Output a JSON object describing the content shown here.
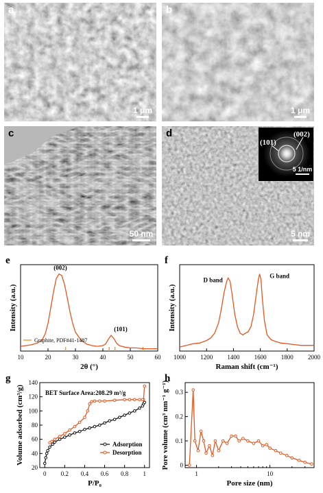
{
  "panels": {
    "a": {
      "label": "a",
      "scale": "1 μm"
    },
    "b": {
      "label": "b",
      "scale": "1 μm"
    },
    "c": {
      "label": "c",
      "scale": "50 nm"
    },
    "d": {
      "label": "d",
      "scale": "5 nm",
      "inset": {
        "ring1": "(002)",
        "ring2": "(101)",
        "scale": "5 1/nm"
      }
    },
    "e": {
      "label": "e"
    },
    "f": {
      "label": "f"
    },
    "g": {
      "label": "g"
    },
    "h": {
      "label": "h"
    }
  },
  "chart_data": [
    {
      "id": "e",
      "type": "line",
      "xlabel": "2θ (°)",
      "ylabel": "Intensity (a.u.)",
      "xlim": [
        10,
        60
      ],
      "xticks": [
        10,
        20,
        30,
        40,
        50,
        60
      ],
      "annotations": [
        {
          "text": "(002)",
          "x": 24.5
        },
        {
          "text": "(101)",
          "x": 43
        }
      ],
      "legend": "Graphite, PDF#41-1487",
      "reference_lines": [
        26.4,
        42.3,
        44.4,
        54.6
      ],
      "series": [
        {
          "color": "#e8541c",
          "x": [
            10,
            12,
            14,
            16,
            17,
            18,
            19,
            20,
            21,
            22,
            23,
            24,
            25,
            26,
            27,
            28,
            29,
            30,
            32,
            34,
            36,
            38,
            40,
            41,
            42,
            43,
            44,
            45,
            46,
            48,
            50,
            52,
            55,
            58,
            60
          ],
          "y": [
            6,
            7,
            8,
            10,
            12,
            15,
            22,
            35,
            55,
            75,
            92,
            98,
            96,
            85,
            68,
            50,
            35,
            24,
            14,
            9,
            7,
            6,
            7,
            9,
            15,
            20,
            16,
            10,
            7,
            5,
            4,
            4,
            3,
            3,
            3
          ]
        }
      ]
    },
    {
      "id": "f",
      "type": "line",
      "xlabel": "Raman shift (cm⁻¹)",
      "ylabel": "Intensity (a.u.)",
      "xlim": [
        1000,
        2000
      ],
      "xticks": [
        1000,
        1200,
        1400,
        1600,
        1800,
        2000
      ],
      "annotations": [
        {
          "text": "D band",
          "x": 1340
        },
        {
          "text": "G band",
          "x": 1600
        }
      ],
      "series": [
        {
          "color": "#e8541c",
          "x": [
            1000,
            1050,
            1100,
            1150,
            1200,
            1230,
            1260,
            1290,
            1310,
            1330,
            1350,
            1360,
            1375,
            1390,
            1410,
            1430,
            1450,
            1470,
            1490,
            1510,
            1530,
            1550,
            1570,
            1585,
            1595,
            1605,
            1615,
            1630,
            1650,
            1680,
            1710,
            1750,
            1800,
            1850,
            1900,
            1950,
            2000
          ],
          "y": [
            5,
            7,
            9,
            10,
            13,
            16,
            22,
            35,
            52,
            72,
            86,
            90,
            86,
            70,
            45,
            30,
            22,
            20,
            22,
            24,
            30,
            45,
            70,
            88,
            95,
            88,
            65,
            38,
            20,
            14,
            12,
            10,
            9,
            8,
            7,
            7,
            7
          ]
        }
      ]
    },
    {
      "id": "g",
      "type": "line",
      "xlabel": "P/P₀",
      "ylabel": "Volume adsorbed (cm³/g)",
      "xlim": [
        -0.05,
        1.05
      ],
      "ylim": [
        20,
        140
      ],
      "xticks": [
        0.0,
        0.2,
        0.4,
        0.6,
        0.8,
        1.0
      ],
      "yticks": [
        20,
        40,
        60,
        80,
        100,
        120,
        140
      ],
      "annotations": [
        {
          "text": "BET Surface Area:208.29 m²/g"
        }
      ],
      "legend_position": "bottom-right",
      "series": [
        {
          "name": "Adsorption",
          "color": "#111111",
          "x": [
            0.0,
            0.01,
            0.02,
            0.03,
            0.05,
            0.08,
            0.1,
            0.15,
            0.2,
            0.25,
            0.3,
            0.35,
            0.4,
            0.45,
            0.5,
            0.55,
            0.6,
            0.65,
            0.7,
            0.75,
            0.8,
            0.85,
            0.9,
            0.95,
            0.98,
            0.99,
            1.0
          ],
          "y": [
            26,
            34,
            40,
            44,
            49,
            53,
            56,
            60,
            63,
            66,
            69,
            71,
            74,
            76,
            78,
            80,
            83,
            86,
            88,
            91,
            94,
            97,
            100,
            104,
            107,
            110,
            112
          ]
        },
        {
          "name": "Desorption",
          "color": "#e8541c",
          "x": [
            1.0,
            0.99,
            0.98,
            0.95,
            0.9,
            0.85,
            0.8,
            0.7,
            0.6,
            0.55,
            0.5,
            0.47,
            0.45,
            0.43,
            0.4,
            0.35,
            0.3,
            0.25,
            0.2,
            0.15,
            0.1,
            0.07,
            0.05
          ],
          "y": [
            135,
            116,
            116,
            116,
            116,
            116,
            116,
            115,
            114,
            114,
            114,
            113,
            110,
            100,
            91,
            84,
            78,
            73,
            68,
            64,
            60,
            57,
            55
          ]
        }
      ]
    },
    {
      "id": "h",
      "type": "line",
      "xlabel": "Pore size (nm)",
      "ylabel": "Pore volume (cm³ nm⁻¹ g⁻¹)",
      "xscale": "log",
      "xlim": [
        0.7,
        40
      ],
      "ylim": [
        -0.01,
        0.34
      ],
      "xticks": [
        1,
        10
      ],
      "yticks": [
        0.0,
        0.1,
        0.2,
        0.3
      ],
      "series": [
        {
          "color": "#e8541c",
          "x": [
            0.8,
            0.9,
            0.95,
            1.05,
            1.15,
            1.25,
            1.35,
            1.5,
            1.65,
            1.8,
            2.0,
            2.3,
            2.6,
            3.0,
            3.4,
            3.8,
            4.3,
            5,
            6,
            7,
            8,
            9,
            10,
            12,
            14,
            17,
            20,
            25,
            30,
            37
          ],
          "y": [
            0.0,
            0.31,
            0.1,
            0.06,
            0.14,
            0.1,
            0.05,
            0.08,
            0.04,
            0.1,
            0.06,
            0.1,
            0.09,
            0.12,
            0.12,
            0.1,
            0.11,
            0.1,
            0.09,
            0.1,
            0.08,
            0.085,
            0.07,
            0.06,
            0.05,
            0.04,
            0.03,
            0.02,
            0.012,
            0.005
          ]
        }
      ]
    }
  ]
}
